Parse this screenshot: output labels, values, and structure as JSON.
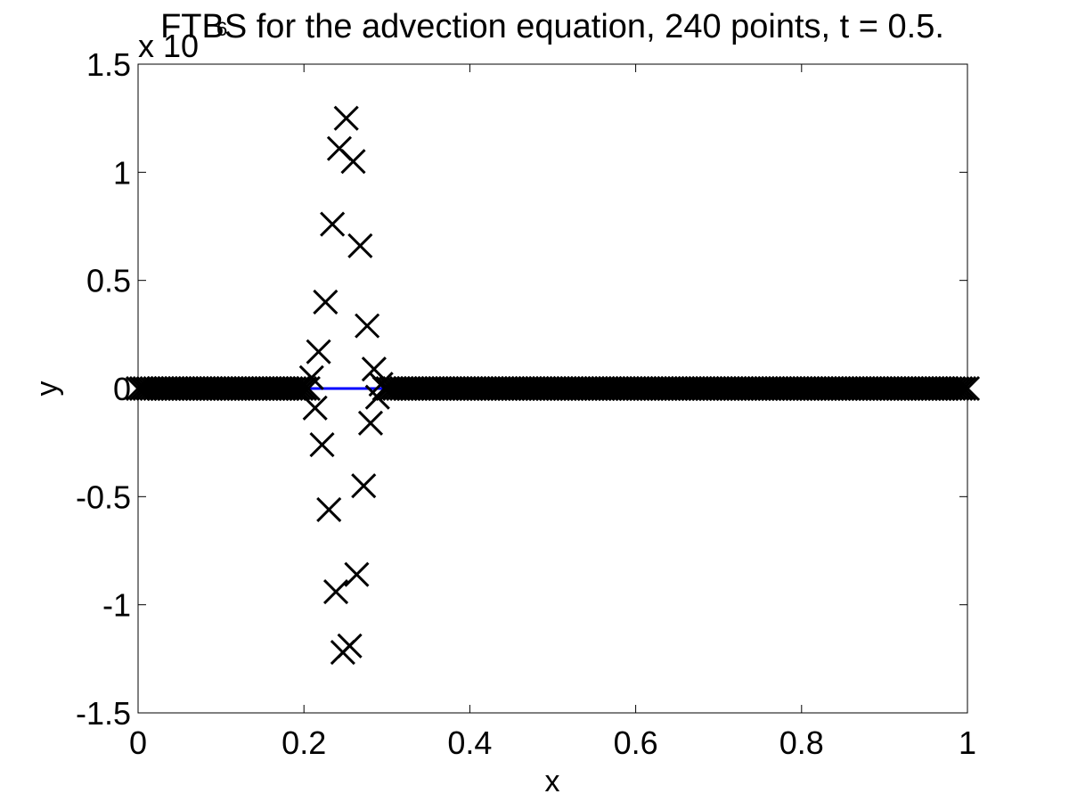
{
  "chart_data": {
    "type": "scatter",
    "title": "FTBS for the advection equation, 240 points, t = 0.5.",
    "xlabel": "x",
    "ylabel": "y",
    "xlim": [
      0,
      1
    ],
    "ylim": [
      -1.5,
      1.5
    ],
    "y_multiplier_label": "x 10",
    "y_multiplier_exponent": "6",
    "grid": false,
    "legend": "none",
    "x_ticks": [
      "0",
      "0.2",
      "0.4",
      "0.6",
      "0.8",
      "1"
    ],
    "x_tick_values": [
      0,
      0.2,
      0.4,
      0.6,
      0.8,
      1
    ],
    "y_ticks": [
      "-1.5",
      "-1",
      "-0.5",
      "0",
      "0.5",
      "1",
      "1.5"
    ],
    "y_tick_values": [
      -1.5,
      -1,
      -0.5,
      0,
      0.5,
      1,
      1.5
    ],
    "colors": {
      "numerical": "#000000",
      "exact": "#0000ff",
      "axes": "#000000"
    },
    "series": [
      {
        "marker": "x",
        "color": "#000000",
        "x_range": [
          0,
          1
        ],
        "points_count": 240,
        "zero_value": 0,
        "nonzero_points": [
          {
            "x": 0.2092,
            "y": 0.05
          },
          {
            "x": 0.2134,
            "y": -0.09
          },
          {
            "x": 0.2176,
            "y": 0.17
          },
          {
            "x": 0.2218,
            "y": -0.26
          },
          {
            "x": 0.2259,
            "y": 0.4
          },
          {
            "x": 0.2301,
            "y": -0.56
          },
          {
            "x": 0.2343,
            "y": 0.76
          },
          {
            "x": 0.2385,
            "y": -0.94
          },
          {
            "x": 0.2427,
            "y": 1.11
          },
          {
            "x": 0.2469,
            "y": -1.22
          },
          {
            "x": 0.251,
            "y": 1.25
          },
          {
            "x": 0.2552,
            "y": -1.19
          },
          {
            "x": 0.2594,
            "y": 1.05
          },
          {
            "x": 0.2636,
            "y": -0.86
          },
          {
            "x": 0.2678,
            "y": 0.66
          },
          {
            "x": 0.272,
            "y": -0.45
          },
          {
            "x": 0.2762,
            "y": 0.29
          },
          {
            "x": 0.2803,
            "y": -0.16
          },
          {
            "x": 0.2845,
            "y": 0.09
          },
          {
            "x": 0.2887,
            "y": -0.04
          },
          {
            "x": 0.2929,
            "y": 0.02
          }
        ]
      },
      {
        "type": "line",
        "color": "#0000ff",
        "x": [
          0.2,
          0.3
        ],
        "y": [
          0,
          0
        ]
      }
    ]
  }
}
